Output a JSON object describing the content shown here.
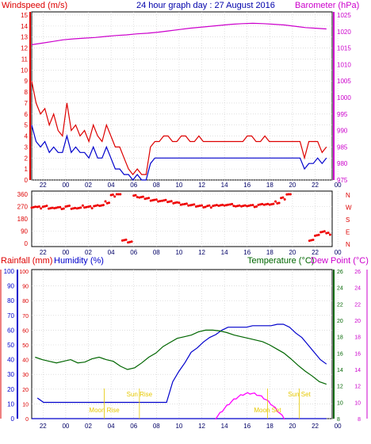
{
  "header": {
    "left_label": "Windspeed (m/s)",
    "title": "24 hour graph day : 27 August 2016",
    "right_label": "Barometer (hPa)"
  },
  "bottom_header": {
    "rainfall_label": "Rainfall (mm)",
    "humidity_label": "Humidity (%)",
    "temperature_label": "Temperature (°C)",
    "dewpoint_label": "Dew Point (°C)"
  },
  "colors": {
    "wind_gust": "#dd0000",
    "wind_avg": "#0000cc",
    "barometer": "#cc00cc",
    "direction": "#ee0000",
    "humidity": "#0000cc",
    "temperature": "#006600",
    "rain": "#0000cc",
    "sun": "#e6c800",
    "moon": "#ff00ff",
    "grid": "#cccccc"
  },
  "x_ticks": [
    "22",
    "00",
    "02",
    "04",
    "06",
    "08",
    "10",
    "12",
    "14",
    "16",
    "18",
    "20",
    "22",
    "00"
  ],
  "chart_data": [
    {
      "type": "line",
      "name": "wind_and_pressure",
      "x_ticks": [
        "22",
        "00",
        "02",
        "04",
        "06",
        "08",
        "10",
        "12",
        "14",
        "16",
        "18",
        "20",
        "22",
        "00"
      ],
      "y_left_ticks": [
        "0",
        "1",
        "2",
        "3",
        "4",
        "5",
        "6",
        "7",
        "8",
        "9",
        "10",
        "11",
        "12",
        "13",
        "14",
        "15"
      ],
      "y_left_range": [
        0,
        15
      ],
      "y_right_ticks": [
        "975",
        "980",
        "985",
        "990",
        "995",
        "1000",
        "1005",
        "1010",
        "1015",
        "1020",
        "1025"
      ],
      "y_right_range": [
        975,
        1025
      ],
      "series": [
        {
          "key": "gust",
          "values": [
            9,
            7,
            6,
            6.5,
            5,
            6,
            4.5,
            4,
            7,
            4.5,
            5,
            4,
            4.5,
            3.5,
            5,
            4,
            3.5,
            5,
            4,
            3,
            3,
            2,
            1,
            0.5,
            1,
            0.5,
            0.5,
            3,
            3.5,
            3.5,
            4,
            4,
            3.5,
            3.5,
            4,
            4,
            3.5,
            3.5,
            4,
            3.5,
            3.5,
            3.5,
            3.5,
            3.5,
            3.5,
            3.5,
            3.5,
            3.5,
            3.5,
            4,
            4,
            3.5,
            3.5,
            4,
            3.5,
            3.5,
            3.5,
            3.5,
            3.5,
            3.5,
            3.5,
            3.5,
            2,
            3.5,
            3.5,
            3.5,
            2.5,
            3
          ]
        },
        {
          "key": "average",
          "values": [
            5,
            3.5,
            3,
            3.5,
            2.5,
            3,
            2.5,
            2.5,
            4,
            2.5,
            3,
            2.5,
            2.5,
            2,
            3,
            2,
            2,
            3,
            2,
            1,
            1,
            0.5,
            0.5,
            0,
            0.5,
            0,
            0,
            1.5,
            2,
            2,
            2,
            2,
            2,
            2,
            2,
            2,
            2,
            2,
            2,
            2,
            2,
            2,
            2,
            2,
            2,
            2,
            2,
            2,
            2,
            2,
            2,
            2,
            2,
            2,
            2,
            2,
            2,
            2,
            2,
            2,
            2,
            2,
            1,
            1.5,
            1.5,
            2,
            1.5,
            2
          ]
        },
        {
          "key": "barometer",
          "values": [
            1016,
            1016.5,
            1017,
            1017.5,
            1017.8,
            1018,
            1018.2,
            1018.5,
            1018.8,
            1019,
            1019.3,
            1019.5,
            1019.8,
            1020.2,
            1020.6,
            1021,
            1021.3,
            1021.6,
            1021.9,
            1022.2,
            1022.4,
            1022.5,
            1022.4,
            1022.2,
            1022,
            1021.6,
            1021.2,
            1021,
            1020.8
          ]
        }
      ]
    },
    {
      "type": "scatter",
      "name": "wind_direction",
      "y_ticks": [
        "360",
        "270",
        "180",
        "90",
        "0"
      ],
      "y_range": [
        0,
        360
      ],
      "y_right_labels": [
        "N",
        "W",
        "S",
        "E",
        "N"
      ],
      "x": [
        0,
        0.5,
        1,
        1.5,
        2,
        2.5,
        3,
        3.5,
        4,
        4.5,
        5,
        5.5,
        6,
        6.5,
        7,
        7.5,
        8,
        8.5,
        9,
        9.5,
        10,
        10.5,
        11,
        11.5,
        12,
        12.5,
        13,
        13.5,
        14,
        14.5,
        15,
        15.5,
        16,
        16.5,
        17,
        17.5,
        18,
        18.5,
        19,
        19.5,
        20,
        20.5,
        21,
        21.5,
        22,
        22.5,
        23,
        23.5,
        24,
        24.5,
        25,
        25.5,
        26
      ],
      "values": [
        270,
        262,
        268,
        258,
        265,
        260,
        268,
        255,
        262,
        270,
        266,
        274,
        280,
        300,
        350,
        360,
        25,
        15,
        345,
        335,
        330,
        320,
        315,
        310,
        305,
        300,
        290,
        285,
        280,
        275,
        270,
        270,
        275,
        280,
        285,
        280,
        270,
        275,
        280,
        275,
        280,
        285,
        290,
        300,
        330,
        360,
        null,
        null,
        null,
        20,
        60,
        90,
        70
      ]
    },
    {
      "type": "line",
      "name": "temperature_humidity_rain",
      "y_left_ticks": [
        "0",
        "10",
        "20",
        "30",
        "40",
        "50",
        "60",
        "70",
        "80",
        "90",
        "100"
      ],
      "y_left_range": [
        0,
        100
      ],
      "y_right_ticks": [
        "8",
        "10",
        "12",
        "14",
        "16",
        "18",
        "20",
        "22",
        "24",
        "26"
      ],
      "y_right_range": [
        8,
        26
      ],
      "series": [
        {
          "key": "humidity",
          "values": [
            14,
            11,
            11,
            11,
            11,
            11,
            11,
            11,
            11,
            11,
            11,
            11,
            11,
            11,
            11,
            11,
            11,
            11,
            11,
            11,
            11,
            11,
            25,
            32,
            38,
            45,
            48,
            52,
            55,
            57,
            60,
            62,
            62,
            62,
            62,
            63,
            63,
            63,
            63,
            64,
            64,
            62,
            58,
            55,
            50,
            45,
            40,
            37
          ]
        },
        {
          "key": "temperature",
          "values": [
            15.5,
            15.2,
            15,
            14.8,
            15,
            15.2,
            14.8,
            14.9,
            15.3,
            15.5,
            15.2,
            15,
            14.4,
            14,
            14.2,
            14.8,
            15.5,
            16,
            16.8,
            17.3,
            17.8,
            18,
            18.2,
            18.6,
            18.8,
            18.8,
            18.7,
            18.5,
            18.2,
            18,
            17.8,
            17.6,
            17.4,
            17,
            16.5,
            16,
            15.3,
            14.5,
            13.8,
            13.2,
            12.5,
            12.2
          ]
        },
        {
          "key": "rain",
          "values": [
            0,
            0,
            0,
            0
          ]
        }
      ],
      "annotations": [
        {
          "label": "Moon Rise",
          "x_hour": 3.4,
          "color": "sun"
        },
        {
          "label": "Sun Rise",
          "x_hour": 6.5,
          "color": "sun"
        },
        {
          "label": "Moon Set",
          "x_hour": 17.8,
          "color": "sun"
        },
        {
          "label": "Sun Set",
          "x_hour": 20.6,
          "color": "sun"
        }
      ]
    }
  ]
}
